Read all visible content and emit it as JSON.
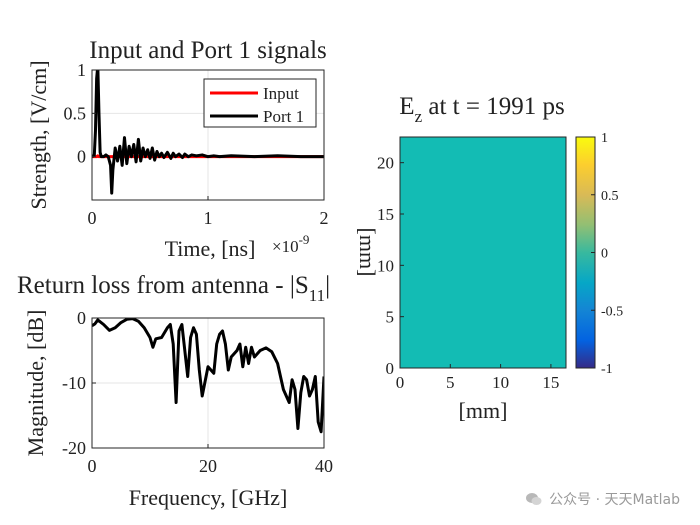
{
  "chart_data": [
    {
      "type": "line",
      "title": "Input and Port 1 signals",
      "xlabel": "Time, [ns]",
      "x_exponent_label": "×10",
      "x_exponent": "-9",
      "ylabel": "Strength, [V/cm]",
      "xlim": [
        0,
        2
      ],
      "ylim": [
        -0.5,
        1
      ],
      "x_ticks": [
        "0",
        "1",
        "2"
      ],
      "y_ticks": [
        "0",
        "0.5",
        "1"
      ],
      "grid": true,
      "legend": "top-right",
      "series": [
        {
          "name": "Input",
          "color": "#ff0000",
          "x": [
            0.0,
            0.04,
            0.05,
            0.06,
            0.08,
            2.0
          ],
          "y": [
            0.0,
            0.0,
            0.01,
            0.0,
            0.0,
            0.0
          ]
        },
        {
          "name": "Port 1",
          "color": "#000000",
          "x": [
            0.0,
            0.02,
            0.03,
            0.04,
            0.05,
            0.06,
            0.07,
            0.08,
            0.1,
            0.12,
            0.14,
            0.16,
            0.17,
            0.18,
            0.2,
            0.22,
            0.24,
            0.26,
            0.28,
            0.3,
            0.32,
            0.34,
            0.36,
            0.38,
            0.4,
            0.42,
            0.44,
            0.46,
            0.48,
            0.5,
            0.52,
            0.54,
            0.56,
            0.58,
            0.6,
            0.62,
            0.65,
            0.68,
            0.7,
            0.72,
            0.75,
            0.78,
            0.8,
            0.83,
            0.86,
            0.9,
            0.95,
            1.0,
            1.05,
            1.1,
            1.2,
            1.4,
            1.6,
            1.8,
            2.0
          ],
          "y": [
            0.0,
            0.02,
            0.3,
            0.9,
            1.05,
            0.5,
            0.05,
            0.0,
            0.0,
            0.02,
            0.0,
            -0.1,
            -0.42,
            -0.15,
            0.1,
            -0.05,
            0.12,
            -0.1,
            0.22,
            -0.08,
            0.12,
            0.0,
            0.14,
            -0.06,
            0.2,
            -0.05,
            0.1,
            0.0,
            0.08,
            -0.02,
            0.1,
            -0.04,
            0.06,
            0.0,
            0.04,
            -0.01,
            0.05,
            -0.02,
            0.04,
            0.0,
            0.03,
            -0.01,
            0.03,
            0.0,
            0.02,
            0.01,
            0.02,
            0.0,
            0.01,
            0.0,
            0.01,
            0.0,
            0.01,
            0.0,
            0.0
          ]
        }
      ]
    },
    {
      "type": "line",
      "title": "Return loss from antenna - |S",
      "title_subscript": "11",
      "title_suffix": "|",
      "xlabel": "Frequency, [GHz]",
      "ylabel": "Magnitude, [dB]",
      "xlim": [
        0,
        40
      ],
      "ylim": [
        -20,
        0
      ],
      "x_ticks": [
        "0",
        "20",
        "40"
      ],
      "y_ticks": [
        "-20",
        "-10",
        "0"
      ],
      "grid": true,
      "series": [
        {
          "color": "#000000",
          "x": [
            0,
            0.5,
            1,
            2,
            3,
            4,
            5,
            6,
            7,
            8,
            9,
            10,
            10.5,
            11,
            12,
            13,
            13.5,
            14,
            14.5,
            15,
            15.5,
            16,
            16.5,
            17,
            17.5,
            18,
            18.5,
            19,
            20,
            21,
            21.5,
            22,
            22.5,
            23,
            23.5,
            24,
            25,
            25.5,
            26,
            26.5,
            27,
            27.5,
            28,
            28.5,
            29,
            30,
            31,
            32,
            33,
            34,
            34.5,
            35,
            35.5,
            36,
            36.5,
            37,
            37.5,
            38,
            38.5,
            39,
            39.5,
            40
          ],
          "y": [
            -1.2,
            -0.9,
            -0.3,
            -1.0,
            -1.9,
            -1.5,
            -0.7,
            -0.2,
            -0.1,
            -0.5,
            -1.5,
            -3.0,
            -4.5,
            -3.2,
            -3.0,
            -1.5,
            -1.0,
            -4.0,
            -13.0,
            -2.0,
            -1.0,
            -5.0,
            -9.0,
            -3.0,
            -1.5,
            -2.5,
            -8.0,
            -12.0,
            -7.5,
            -8.5,
            -4.0,
            -2.5,
            -2.0,
            -4.0,
            -8.0,
            -6.0,
            -5.0,
            -4.0,
            -7.5,
            -4.5,
            -7.0,
            -4.5,
            -6.0,
            -5.5,
            -5.0,
            -4.6,
            -5.2,
            -7.0,
            -11.0,
            -13.0,
            -9.5,
            -11.0,
            -17.0,
            -11.5,
            -9.0,
            -9.5,
            -12.0,
            -11.0,
            -9.0,
            -16.0,
            -17.5,
            -9.0
          ]
        }
      ]
    },
    {
      "type": "heatmap",
      "title": "E",
      "title_subscript": "z",
      "title_suffix": " at t = 1991 ps",
      "xlabel": "[mm]",
      "ylabel": "[mm]",
      "xlim": [
        0,
        16.5
      ],
      "ylim": [
        0,
        22.5
      ],
      "x_ticks": [
        "0",
        "5",
        "10",
        "15"
      ],
      "y_ticks": [
        "0",
        "5",
        "10",
        "15",
        "20"
      ],
      "values": [
        [
          0.0
        ]
      ],
      "fill_color": "#13bcb4",
      "colorbar": {
        "limits": [
          -1,
          1
        ],
        "ticks": [
          "1",
          "0.5",
          "0",
          "-0.5",
          "-1"
        ],
        "colormap": "parula"
      }
    }
  ],
  "watermark": {
    "text": "公众号 · 天天Matlab",
    "icon": "wechat-icon"
  }
}
